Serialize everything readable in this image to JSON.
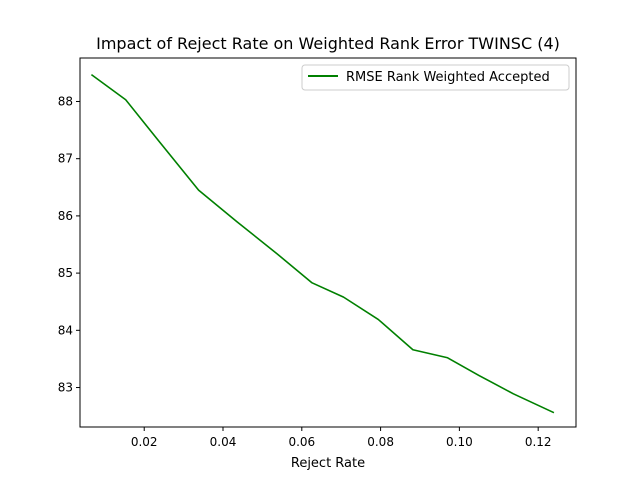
{
  "chart_data": {
    "type": "line",
    "title": "Impact of Reject Rate on Weighted Rank Error TWINSC (4)",
    "xlabel": "Reject Rate",
    "ylabel": "",
    "xlim": [
      0.0037,
      0.1296
    ],
    "ylim": [
      82.31,
      88.76
    ],
    "xticks": [
      0.02,
      0.04,
      0.06,
      0.08,
      0.1,
      0.12
    ],
    "xtick_labels": [
      "0.02",
      "0.04",
      "0.06",
      "0.08",
      "0.10",
      "0.12"
    ],
    "yticks": [
      83,
      84,
      85,
      86,
      87,
      88
    ],
    "ytick_labels": [
      "83",
      "84",
      "85",
      "86",
      "87",
      "88"
    ],
    "grid": false,
    "legend_position": "upper right",
    "series": [
      {
        "name": "RMSE Rank Weighted Accepted",
        "color": "#008000",
        "x": [
          0.0066,
          0.0153,
          0.0238,
          0.0338,
          0.0435,
          0.0535,
          0.0626,
          0.0706,
          0.0794,
          0.0882,
          0.097,
          0.105,
          0.1137,
          0.124
        ],
        "y": [
          88.47,
          88.03,
          87.3,
          86.45,
          85.9,
          85.35,
          84.83,
          84.58,
          84.19,
          83.66,
          83.52,
          83.21,
          82.89,
          82.56
        ]
      }
    ]
  }
}
